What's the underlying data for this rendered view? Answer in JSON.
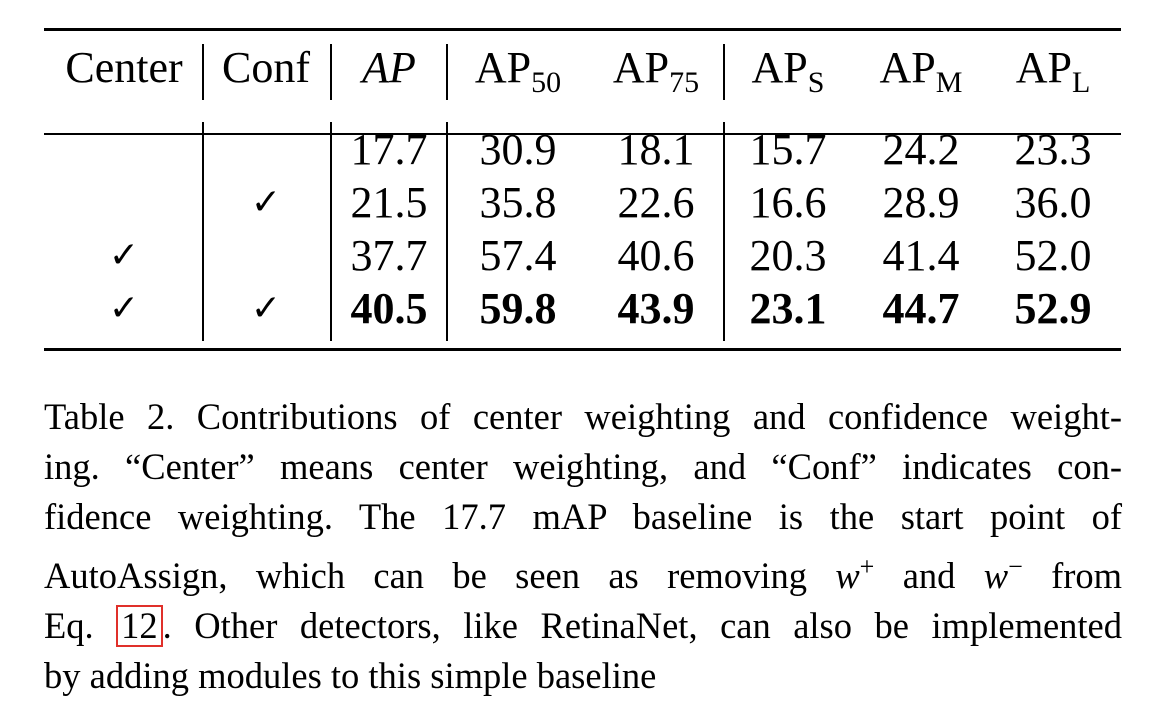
{
  "table": {
    "headers": {
      "center": "Center",
      "conf": "Conf",
      "ap": "AP",
      "ap50_base": "AP",
      "ap50_sub": "50",
      "ap75_base": "AP",
      "ap75_sub": "75",
      "aps_base": "AP",
      "aps_sub": "S",
      "apm_base": "AP",
      "apm_sub": "M",
      "apl_base": "AP",
      "apl_sub": "L"
    },
    "check_glyph": "✓",
    "rows": [
      {
        "center": "",
        "conf": "",
        "values": [
          "17.7",
          "30.9",
          "18.1",
          "15.7",
          "24.2",
          "23.3"
        ]
      },
      {
        "center": "",
        "conf": "✓",
        "values": [
          "21.5",
          "35.8",
          "22.6",
          "16.6",
          "28.9",
          "36.0"
        ]
      },
      {
        "center": "✓",
        "conf": "",
        "values": [
          "37.7",
          "57.4",
          "40.6",
          "20.3",
          "41.4",
          "52.0"
        ]
      },
      {
        "center": "✓",
        "conf": "✓",
        "values": [
          "40.5",
          "59.8",
          "43.9",
          "23.1",
          "44.7",
          "52.9"
        ]
      }
    ]
  },
  "caption": {
    "line1": "Table 2. Contributions of center weighting and confidence weight-",
    "line2": "ing. “Center” means center weighting, and “Conf” indicates con-",
    "line3": "fidence weighting.  The 17.7 mAP baseline is the start point of",
    "line4_a": "AutoAssign, which can be seen as removing",
    "line4_w1": "w",
    "line4_sup1": "+",
    "line4_mid": "and",
    "line4_w2": "w",
    "line4_sup2": "−",
    "line4_b": "from",
    "line5_a": "Eq.",
    "line5_ref": "12",
    "line5_b": ". Other detectors, like RetinaNet, can also be implemented",
    "line6": "by adding modules to this simple baseline"
  }
}
